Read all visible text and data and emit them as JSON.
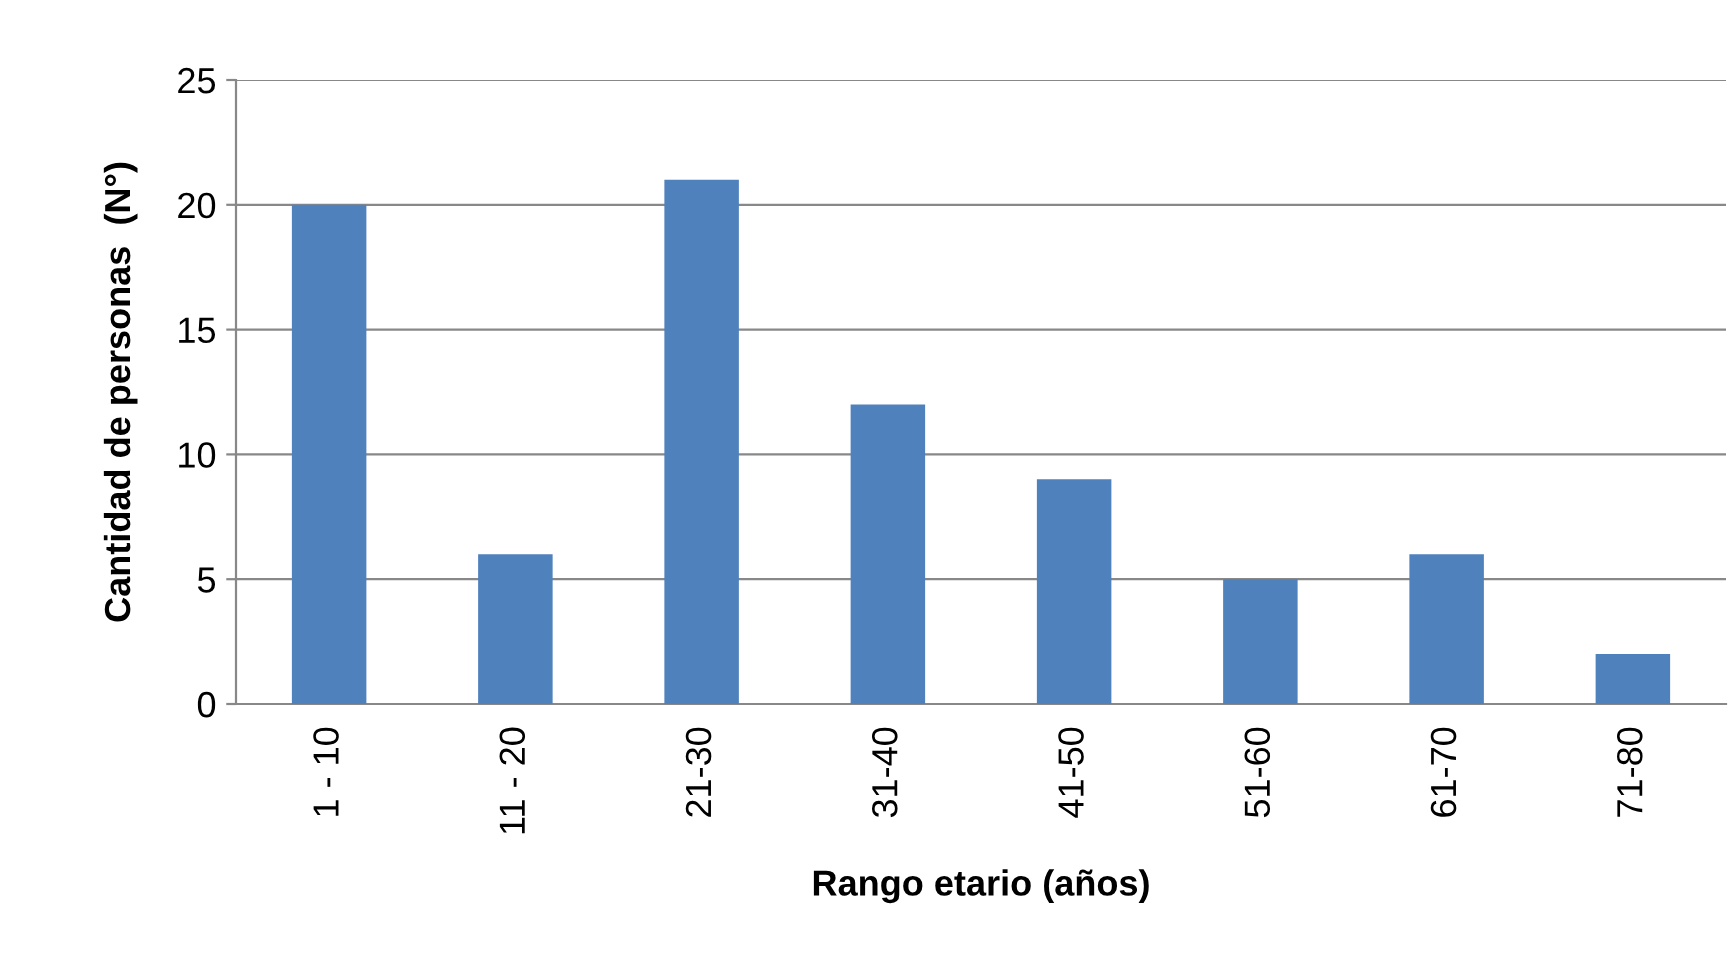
{
  "chart_data": {
    "type": "bar",
    "categories": [
      "1 - 10",
      "11 - 20",
      "21-30",
      "31-40",
      "41-50",
      "51-60",
      "61-70",
      "71-80"
    ],
    "values": [
      20,
      6,
      21,
      12,
      9,
      5,
      6,
      2
    ],
    "color": "#4f81bd",
    "xlabel": "Rango etario (años)",
    "ylabel": "Cantidad de personas  (N°)",
    "ylim": [
      0,
      25
    ],
    "yticks": [
      0,
      5,
      10,
      15,
      20,
      25
    ],
    "grid": "y",
    "legend": false
  }
}
